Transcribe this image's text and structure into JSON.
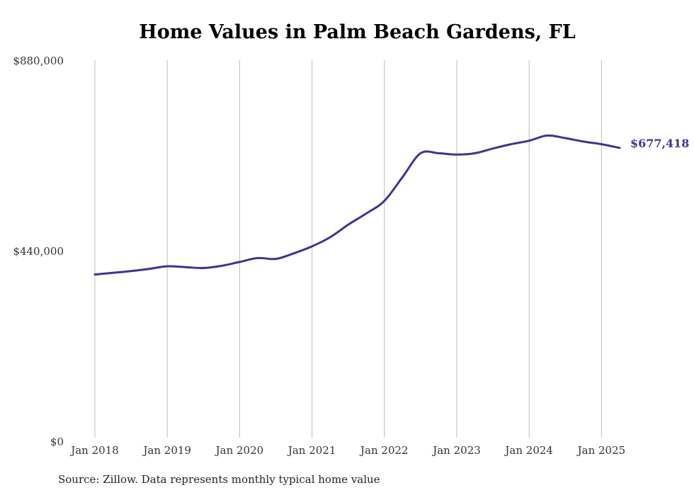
{
  "colors": {
    "line": "#3c3494",
    "gridline": "#bbbbbb",
    "text": "#333333"
  },
  "chart_data": {
    "type": "line",
    "title": "Home Values in Palm Beach Gardens, FL",
    "xlabel": "",
    "ylabel": "",
    "x_ticks": [
      "Jan 2018",
      "Jan 2019",
      "Jan 2020",
      "Jan 2021",
      "Jan 2022",
      "Jan 2023",
      "Jan 2024",
      "Jan 2025"
    ],
    "y_ticks": [
      "$0",
      "$440,000",
      "$880,000"
    ],
    "ylim": [
      0,
      880000
    ],
    "xlim": [
      "2018-01",
      "2025-04"
    ],
    "grid": "vertical",
    "end_label": "$677,418",
    "series": [
      {
        "points": [
          {
            "x": "2018-01",
            "y": 385000
          },
          {
            "x": "2018-04",
            "y": 389000
          },
          {
            "x": "2018-07",
            "y": 393000
          },
          {
            "x": "2018-10",
            "y": 398000
          },
          {
            "x": "2019-01",
            "y": 404000
          },
          {
            "x": "2019-04",
            "y": 402000
          },
          {
            "x": "2019-07",
            "y": 400000
          },
          {
            "x": "2019-10",
            "y": 405000
          },
          {
            "x": "2020-01",
            "y": 414000
          },
          {
            "x": "2020-04",
            "y": 423000
          },
          {
            "x": "2020-07",
            "y": 421000
          },
          {
            "x": "2020-10",
            "y": 434000
          },
          {
            "x": "2021-01",
            "y": 450000
          },
          {
            "x": "2021-04",
            "y": 471000
          },
          {
            "x": "2021-07",
            "y": 500000
          },
          {
            "x": "2021-10",
            "y": 526000
          },
          {
            "x": "2022-01",
            "y": 555000
          },
          {
            "x": "2022-04",
            "y": 610000
          },
          {
            "x": "2022-07",
            "y": 665000
          },
          {
            "x": "2022-10",
            "y": 665000
          },
          {
            "x": "2023-01",
            "y": 662000
          },
          {
            "x": "2023-04",
            "y": 665000
          },
          {
            "x": "2023-07",
            "y": 676000
          },
          {
            "x": "2023-10",
            "y": 686000
          },
          {
            "x": "2024-01",
            "y": 694000
          },
          {
            "x": "2024-04",
            "y": 706000
          },
          {
            "x": "2024-07",
            "y": 700000
          },
          {
            "x": "2024-10",
            "y": 692000
          },
          {
            "x": "2025-01",
            "y": 686000
          },
          {
            "x": "2025-04",
            "y": 677418
          }
        ]
      }
    ]
  },
  "footer": {
    "source_note": "Source: Zillow. Data represents monthly typical home value"
  }
}
